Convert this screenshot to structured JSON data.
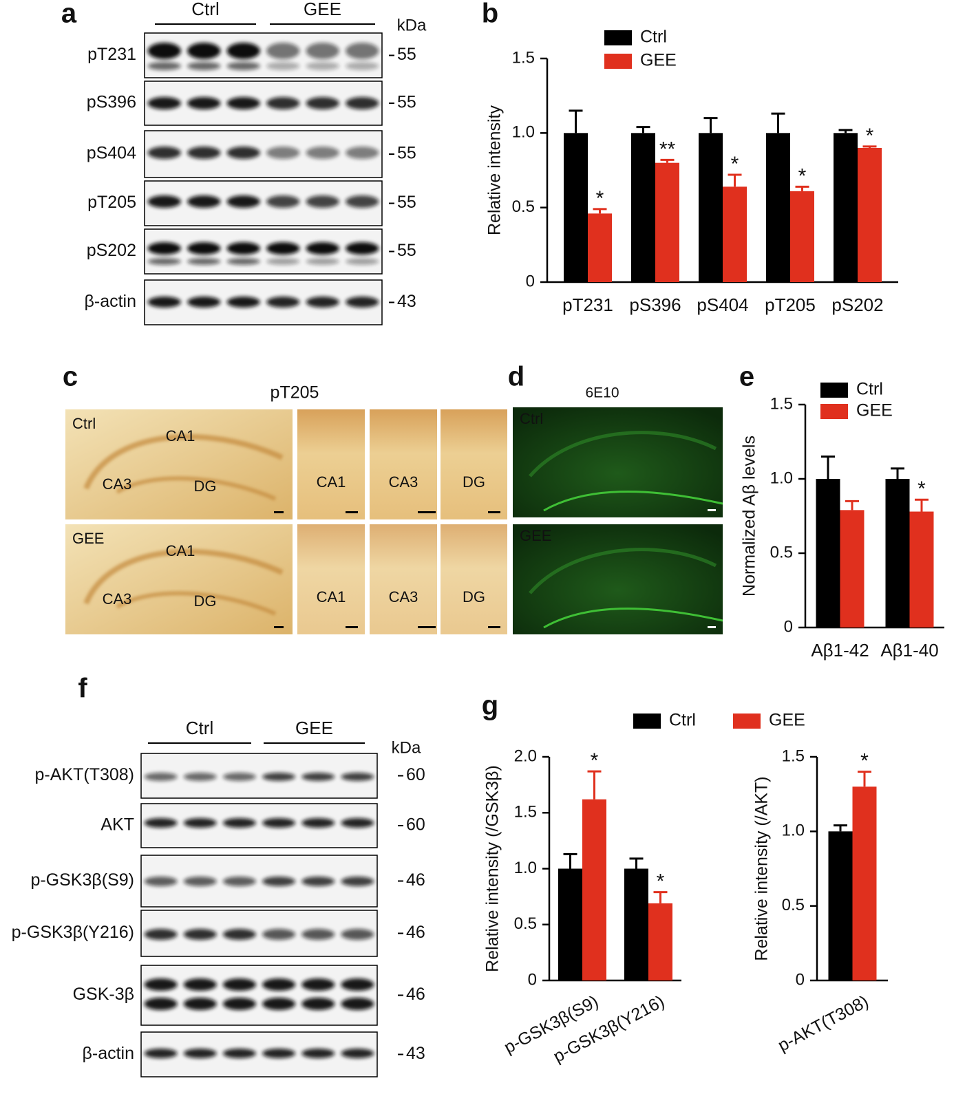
{
  "panel_labels": [
    "a",
    "b",
    "c",
    "d",
    "e",
    "f",
    "g"
  ],
  "blot_a": {
    "groups": [
      "Ctrl",
      "GEE"
    ],
    "unit": "kDa",
    "rows": [
      {
        "label": "pT231",
        "marker": "55"
      },
      {
        "label": "pS396",
        "marker": "55"
      },
      {
        "label": "pS404",
        "marker": "55"
      },
      {
        "label": "pT205",
        "marker": "55"
      },
      {
        "label": "pS202",
        "marker": "55"
      },
      {
        "label": "β-actin",
        "marker": "43"
      }
    ]
  },
  "histology_c": {
    "title": "pT205",
    "groups": [
      "Ctrl",
      "GEE"
    ],
    "regions": [
      "CA1",
      "CA3",
      "DG"
    ]
  },
  "fluorescence_d": {
    "title": "6E10",
    "groups": [
      "Ctrl",
      "GEE"
    ]
  },
  "blot_f": {
    "groups": [
      "Ctrl",
      "GEE"
    ],
    "unit": "kDa",
    "rows": [
      {
        "label": "p-AKT(T308)",
        "marker": "60"
      },
      {
        "label": "AKT",
        "marker": "60"
      },
      {
        "label": "p-GSK3β(S9)",
        "marker": "46"
      },
      {
        "label": "p-GSK3β(Y216)",
        "marker": "46"
      },
      {
        "label": "GSK-3β",
        "marker": "46"
      },
      {
        "label": "β-actin",
        "marker": "43"
      }
    ]
  },
  "chart_data": [
    {
      "type": "bar",
      "y_label": "Relative intensity",
      "legend": "top-left",
      "categories": [
        "pT231",
        "pS396",
        "pS404",
        "pT205",
        "pS202"
      ],
      "series": [
        {
          "name": "Ctrl",
          "color": "#000000",
          "values": [
            1,
            1,
            1,
            1,
            1
          ],
          "errors": [
            0.15,
            0.04,
            0.1,
            0.13,
            0.02
          ],
          "significance": [
            null,
            null,
            null,
            null,
            null
          ]
        },
        {
          "name": "GEE",
          "color": "#e0301e",
          "values": [
            0.46,
            0.8,
            0.64,
            0.61,
            0.9
          ],
          "errors": [
            0.03,
            0.02,
            0.08,
            0.03,
            0.01
          ],
          "significance": [
            "*",
            "**",
            "*",
            "*",
            "*"
          ]
        }
      ],
      "ylim": [
        0,
        1.5
      ],
      "yticks": [
        0,
        0.5,
        {
          "value": 1,
          "label": "1.0"
        },
        1.5
      ]
    },
    {
      "type": "bar",
      "y_label": "Normalized Aβ levels",
      "legend": "top-left",
      "categories": [
        "Aβ1-42",
        "Aβ1-40"
      ],
      "series": [
        {
          "name": "Ctrl",
          "color": "#000000",
          "values": [
            1,
            1
          ],
          "errors": [
            0.15,
            0.07
          ],
          "significance": [
            null,
            null
          ]
        },
        {
          "name": "GEE",
          "color": "#e0301e",
          "values": [
            0.79,
            0.78
          ],
          "errors": [
            0.06,
            0.08
          ],
          "significance": [
            null,
            "*"
          ]
        }
      ],
      "ylim": [
        0,
        1.5
      ],
      "yticks": [
        0,
        0.5,
        {
          "value": 1,
          "label": "1.0"
        },
        1.5
      ]
    },
    {
      "type": "bar",
      "y_label": "Relative intensity (/GSK3β)",
      "legend": "top",
      "categories": [
        "p-GSK3β(S9)",
        "p-GSK3β(Y216)"
      ],
      "series": [
        {
          "name": "Ctrl",
          "color": "#000000",
          "values": [
            1,
            1
          ],
          "errors": [
            0.13,
            0.09
          ],
          "significance": [
            null,
            null
          ]
        },
        {
          "name": "GEE",
          "color": "#e0301e",
          "values": [
            1.62,
            0.69
          ],
          "errors": [
            0.25,
            0.1
          ],
          "significance": [
            "*",
            "*"
          ]
        }
      ],
      "ylim": [
        0,
        2
      ],
      "yticks": [
        0,
        0.5,
        {
          "value": 1,
          "label": "1.0"
        },
        1.5,
        {
          "value": 2,
          "label": "2.0"
        }
      ]
    },
    {
      "type": "bar",
      "y_label": "Relative intensity (/AKT)",
      "legend": "none",
      "categories": [
        "p-AKT(T308)"
      ],
      "series": [
        {
          "color": "#000000",
          "values": [
            1
          ],
          "errors": [
            0.04
          ],
          "significance": [
            null
          ]
        },
        {
          "color": "#e0301e",
          "values": [
            1.3
          ],
          "errors": [
            0.1
          ],
          "significance": [
            "*"
          ]
        }
      ],
      "ylim": [
        0,
        1.5
      ],
      "yticks": [
        0,
        0.5,
        {
          "value": 1,
          "label": "1.0"
        },
        1.5
      ]
    }
  ]
}
